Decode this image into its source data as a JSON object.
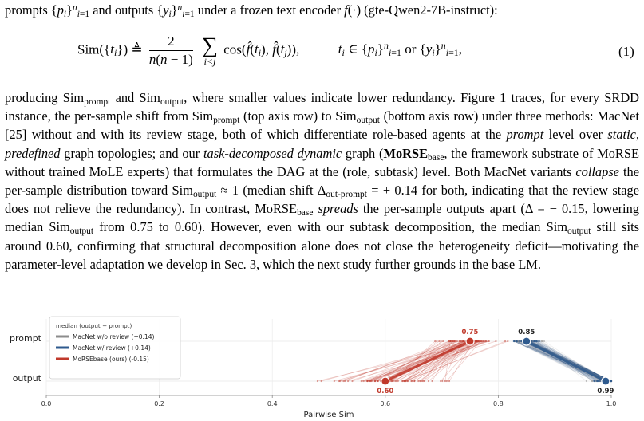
{
  "paper": {
    "intro_line": "prompts {pᵢ}ⁿᵢ₌₁ and outputs {yᵢ}ⁿᵢ₌₁ under a frozen text encoder f(·) (gte-Qwen2-7B-instruct):",
    "equation_lhs": "Sim({tᵢ}) ≜",
    "equation_frac_num": "2",
    "equation_frac_den": "n(n − 1)",
    "equation_sum_sub": "i<j",
    "equation_rhs": "cos(f̂(tᵢ), f̂(tⱼ)),",
    "equation_domain": "tᵢ ∈ {pᵢ}ⁿᵢ₌₁ or {yᵢ}ⁿᵢ₌₁,",
    "equation_number": "(1)",
    "body_lines": [
      "producing Simprompt and Simoutput, where smaller values indicate lower redundancy. Figure 1 traces,",
      "for every SRDD instance, the per-sample shift from Simprompt (top axis row) to Simoutput (bottom",
      "axis row) under three methods: MacNet [25] without and with its review stage, both of which",
      "differentiate role-based agents at the prompt level over static, predefined graph topologies; and",
      "our task-decomposed dynamic graph (MoRSEbase, the framework substrate of MoRSE without",
      "trained MoLE experts) that formulates the DAG at the (role, subtask) level. Both MacNet variants",
      "collapse the per-sample distribution toward Simoutput ≈ 1 (median shift Δout-prompt = + 0.14 for both,",
      "indicating that the review stage does not relieve the redundancy). In contrast, MoRSEbase spreads",
      "the per-sample outputs apart (Δ = − 0.15, lowering median Simoutput from 0.75 to 0.60). However,",
      "even with our subtask decomposition, the median Simoutput still sits around 0.60, confirming that",
      "structural decomposition alone does not close the heterogeneity deficit—motivating the parameter-",
      "level adaptation we develop in Sec. 3, which the next study further grounds in the base LM."
    ]
  },
  "chart_data": {
    "type": "scatter",
    "title": "",
    "xlabel": "Pairwise Sim",
    "ylabel": "",
    "rows": [
      "prompt",
      "output"
    ],
    "xlim": [
      0.0,
      1.0
    ],
    "xticks": [
      "0.0",
      "0.2",
      "0.4",
      "0.6",
      "0.8",
      "1.0"
    ],
    "grid": true,
    "legend": {
      "placement": "top-left",
      "title": "median  (output − prompt)",
      "entries": [
        {
          "label": "MacNet w/o review   (+0.14)",
          "color": "#8c8c8c"
        },
        {
          "label": "MacNet w/ review   (+0.14)",
          "color": "#2e5a8e"
        },
        {
          "label": "MoRSEbase (ours)   (-0.15)",
          "color": "#c0392b"
        }
      ]
    },
    "series": [
      {
        "name": "MacNet w/o review",
        "color": "#8c8c8c",
        "median_prompt": 0.85,
        "median_output": 0.99
      },
      {
        "name": "MacNet w/ review",
        "color": "#2e5a8e",
        "median_prompt": 0.85,
        "median_output": 0.99
      },
      {
        "name": "MoRSEbase (ours)",
        "color": "#c0392b",
        "median_prompt": 0.75,
        "median_output": 0.6
      }
    ],
    "annotations": [
      {
        "text": "0.85",
        "x": 0.85,
        "row": "prompt"
      },
      {
        "text": "0.75",
        "x": 0.75,
        "row": "prompt"
      },
      {
        "text": "0.60",
        "x": 0.6,
        "row": "output"
      },
      {
        "text": "0.99",
        "x": 0.99,
        "row": "output"
      }
    ]
  }
}
